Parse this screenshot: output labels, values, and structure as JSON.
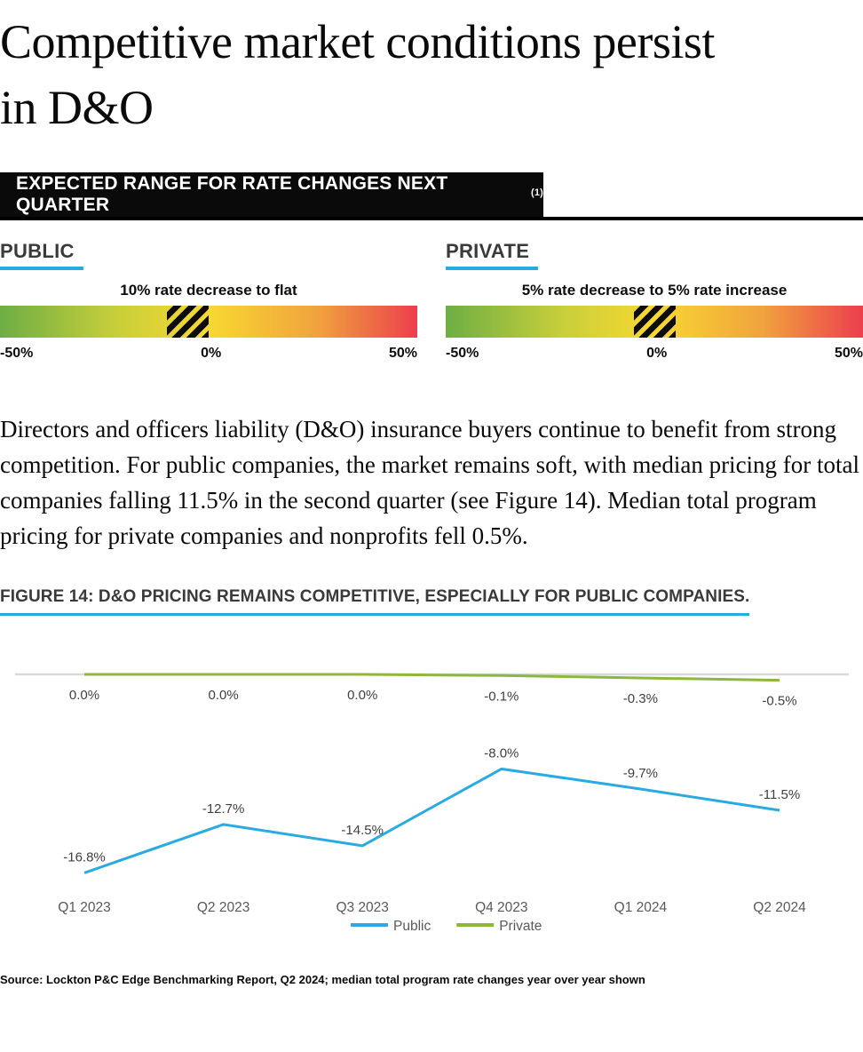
{
  "page": {
    "title": "Competitive market conditions persist in D&O",
    "banner_title": "EXPECTED RANGE FOR RATE CHANGES NEXT QUARTER",
    "banner_footnote": "(1)",
    "body_text": "Directors and officers liability (D&O) insurance buyers continue to benefit from strong competition. For public companies, the market remains soft, with median pricing for total companies falling 11.5% in the second quarter (see Figure 14). Median total program pricing for private companies and nonprofits fell 0.5%.",
    "figure_caption": "FIGURE 14: D&O PRICING REMAINS COMPETITIVE, ESPECIALLY FOR PUBLIC COMPANIES.",
    "source": "Source: Lockton P&C Edge Benchmarking Report, Q2 2024; median total program rate changes year over year shown"
  },
  "expected_ranges": {
    "axis": {
      "min": -50,
      "max": 50,
      "min_label": "-50%",
      "mid_label": "0%",
      "max_label": "50%"
    },
    "sections": [
      {
        "label": "PUBLIC",
        "annotation": "10% rate decrease to flat",
        "range": [
          -10,
          0
        ]
      },
      {
        "label": "PRIVATE",
        "annotation": "5% rate decrease to 5% rate increase",
        "range": [
          -5,
          5
        ]
      }
    ]
  },
  "chart_data": {
    "type": "line",
    "title": "FIGURE 14: D&O PRICING REMAINS COMPETITIVE, ESPECIALLY FOR PUBLIC COMPANIES.",
    "categories": [
      "Q1 2023",
      "Q2 2023",
      "Q3 2023",
      "Q4 2023",
      "Q1 2024",
      "Q2 2024"
    ],
    "series": [
      {
        "name": "Public",
        "color": "#29ABE2",
        "values": [
          -16.8,
          -12.7,
          -14.5,
          -8.0,
          -9.7,
          -11.5
        ],
        "labels": [
          "-16.8%",
          "-12.7%",
          "-14.5%",
          "-8.0%",
          "-9.7%",
          "-11.5%"
        ],
        "label_side": "above"
      },
      {
        "name": "Private",
        "color": "#8DB73F",
        "values": [
          0.0,
          0.0,
          0.0,
          -0.1,
          -0.3,
          -0.5
        ],
        "labels": [
          "0.0%",
          "0.0%",
          "0.0%",
          "-0.1%",
          "-0.3%",
          "-0.5%"
        ],
        "label_side": "below"
      }
    ],
    "legend_position": "bottom",
    "grid": "zero-line-only",
    "ylim": [
      -18,
      1
    ],
    "unit": "%"
  },
  "colors": {
    "accent_blue": "#29ABE2",
    "private_green": "#8DB73F",
    "zero_line": "#D9D9D9",
    "data_label_text": "#404040",
    "axis_label_text": "#595959",
    "gradient": [
      "#6EAE44",
      "#C8CF3A",
      "#F8D831",
      "#F0A33E",
      "#EC3E4D"
    ]
  }
}
